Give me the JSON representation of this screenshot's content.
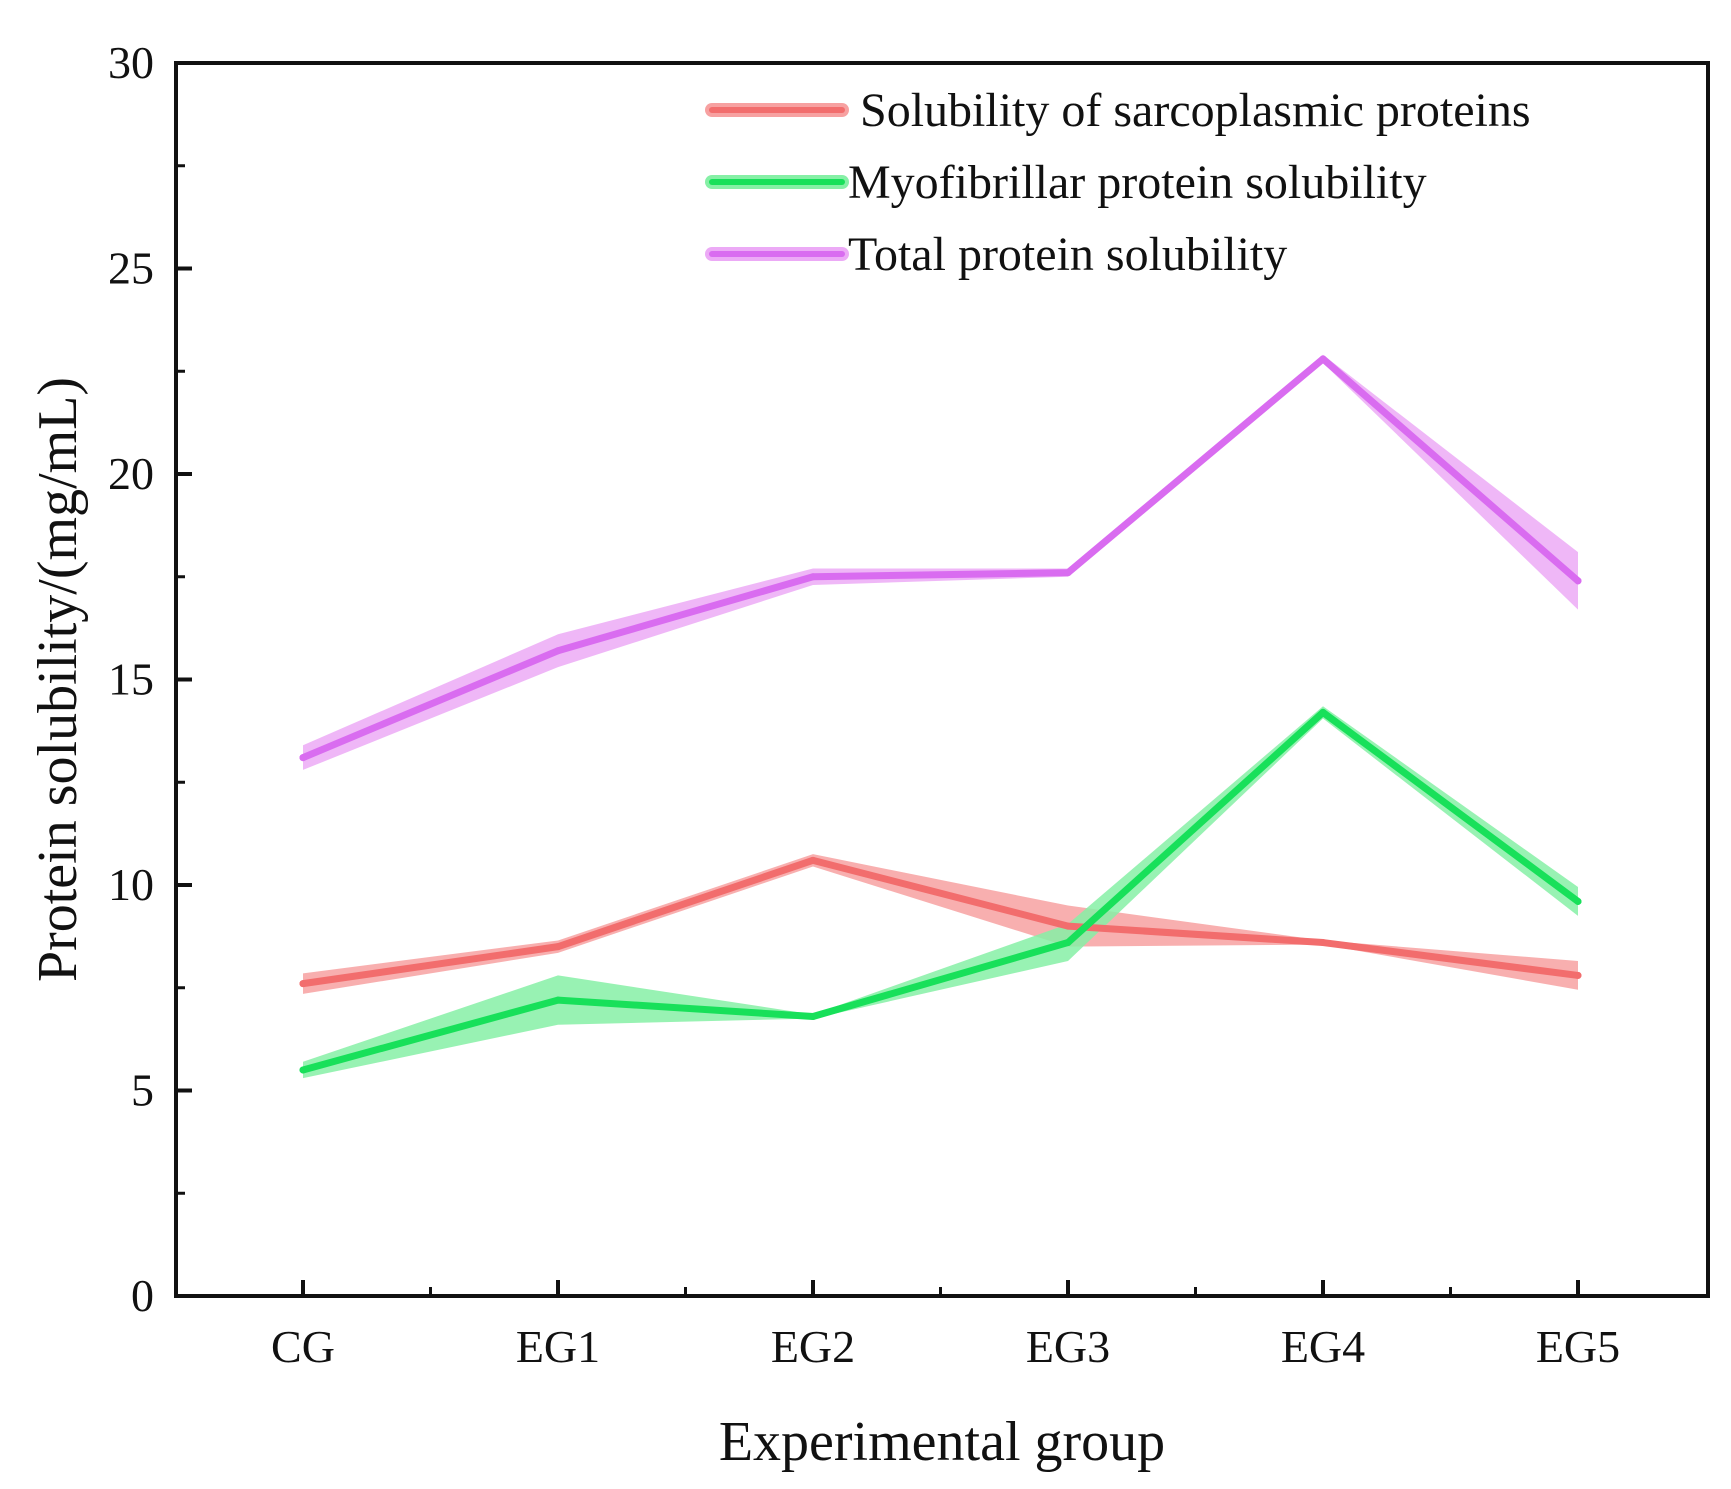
{
  "chart_data": {
    "type": "line",
    "title": "",
    "xlabel": "Experimental group",
    "ylabel": "Protein solubility/(mg/mL)",
    "categories": [
      "CG",
      "EG1",
      "EG2",
      "EG3",
      "EG4",
      "EG5"
    ],
    "ylim": [
      0,
      30
    ],
    "yticks": [
      0,
      5,
      10,
      15,
      20,
      25,
      30
    ],
    "grid": false,
    "legend_position": "top-right",
    "error_band": true,
    "series": [
      {
        "name": "Solubility of sarcoplasmic proteins",
        "color": "#f26d6d",
        "band_color": "#f7a1a1",
        "values": [
          7.6,
          8.5,
          10.6,
          9.0,
          8.6,
          7.8
        ],
        "errors": [
          0.25,
          0.15,
          0.15,
          0.5,
          0.05,
          0.35
        ]
      },
      {
        "name": "Myofibrillar protein solubility",
        "color": "#18e05a",
        "band_color": "#86f0a6",
        "values": [
          5.5,
          7.2,
          6.8,
          8.6,
          14.2,
          9.6
        ],
        "errors": [
          0.2,
          0.6,
          0.05,
          0.45,
          0.15,
          0.35
        ]
      },
      {
        "name": "Total protein solubility",
        "color": "#d96cf0",
        "band_color": "#ecaaf6",
        "values": [
          13.1,
          15.7,
          17.5,
          17.6,
          22.8,
          17.4
        ],
        "errors": [
          0.3,
          0.4,
          0.2,
          0.1,
          0.1,
          0.7
        ]
      }
    ]
  }
}
